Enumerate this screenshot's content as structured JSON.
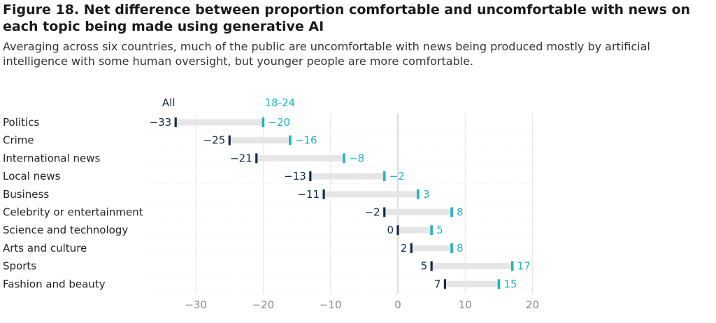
{
  "figure": {
    "title": "Figure 18. Net difference between proportion comfortable and uncomfortable with news on each topic being made using generative AI",
    "subtitle": "Averaging across six countries, much of the public are uncomfortable with news being produced mostly by artificial intelligence with some human oversight, but younger people are more comfortable."
  },
  "colors": {
    "all": "#13294b",
    "age_18_24": "#1fb5c1",
    "connector": "#e6e6e6",
    "grid": "#e3e3e3",
    "zero_line": "#c8c8c8"
  },
  "chart_data": {
    "type": "dumbbell",
    "title": "Figure 18. Net difference between proportion comfortable and uncomfortable with news on each topic being made using generative AI",
    "categories": [
      "Politics",
      "Crime",
      "International news",
      "Local news",
      "Business",
      "Celebrity or entertainment",
      "Science and technology",
      "Arts and culture",
      "Sports",
      "Fashion and beauty"
    ],
    "series": [
      {
        "name": "All",
        "values": [
          -33,
          -25,
          -21,
          -13,
          -11,
          -2,
          0,
          2,
          5,
          7
        ]
      },
      {
        "name": "18-24",
        "values": [
          -20,
          -16,
          -8,
          -2,
          3,
          8,
          5,
          8,
          17,
          15
        ]
      }
    ],
    "value_labels": {
      "All": [
        "−33",
        "−25",
        "−21",
        "−13",
        "−11",
        "−2",
        "0",
        "2",
        "5",
        "7"
      ],
      "18-24": [
        "−20",
        "−16",
        "−8",
        "−2",
        "3",
        "8",
        "5",
        "8",
        "17",
        "15"
      ]
    },
    "xlim": [
      -36,
      21
    ],
    "xticks": [
      -30,
      -20,
      -10,
      0,
      10,
      20
    ],
    "xtick_labels": [
      "−30",
      "−20",
      "−10",
      "0",
      "10",
      "20"
    ],
    "xlabel": "",
    "ylabel": "",
    "grid": true,
    "legend": "top, labels above the first row"
  }
}
